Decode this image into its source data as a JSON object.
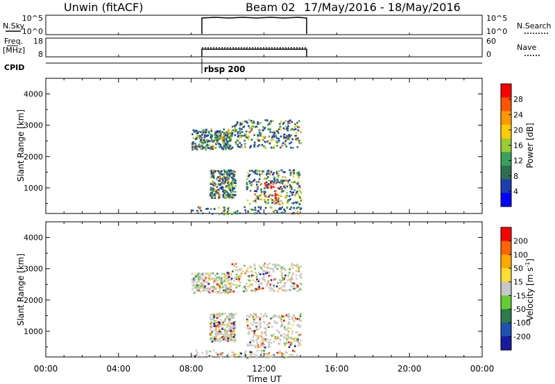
{
  "header": {
    "station": "Unwin (fitACF)",
    "beam": "Beam 02",
    "date_range": "17/May/2016 - 18/May/2016"
  },
  "nsky_panel": {
    "label": "N.Sky",
    "left_ticks": [
      "10^5",
      "10^0"
    ],
    "right_ticks": [
      "10^5",
      "10^0"
    ],
    "right_label": "N.Search"
  },
  "freq_panel": {
    "label_line1": "Freq.",
    "label_line2": "[MHz]",
    "left_ticks": [
      "18",
      "8"
    ],
    "right_ticks": [
      "60",
      "0"
    ],
    "right_label": "Nave"
  },
  "cpid": {
    "label": "CPID",
    "value": "rbsp 200"
  },
  "power_panel": {
    "ylabel": "Slant Range [km]",
    "yticks": [
      "4000",
      "3000",
      "2000",
      "1000"
    ],
    "colorbar_label": "Power [dB]",
    "colorbar_ticks": [
      "28",
      "24",
      "20",
      "16",
      "12",
      "8",
      "4"
    ],
    "colors": [
      "#0000ff",
      "#1f3cb0",
      "#2e6e4e",
      "#3aa05a",
      "#99cc33",
      "#ffcc00",
      "#ff9900",
      "#ff5500",
      "#ff0000"
    ]
  },
  "velocity_panel": {
    "ylabel": "Slant Range [km]",
    "yticks": [
      "4000",
      "3000",
      "2000",
      "1000"
    ],
    "colorbar_label": "Velocity [m s",
    "colorbar_label_sup": "-1",
    "colorbar_label_end": "]",
    "colorbar_ticks": [
      "200",
      "100",
      "50",
      "15",
      "-15",
      "-50",
      "-100",
      "-200"
    ],
    "colors": [
      "#1a1aa0",
      "#2050b0",
      "#2e7a4a",
      "#66cc33",
      "#c8c8c8",
      "#ffdd33",
      "#ffaa00",
      "#ff6600",
      "#ff0000"
    ]
  },
  "xaxis": {
    "label": "Time UT",
    "ticks": [
      "00:00",
      "04:00",
      "08:00",
      "12:00",
      "16:00",
      "20:00",
      "00:00"
    ]
  },
  "chart_data": {
    "type": "heatmap",
    "title": "Unwin (fitACF) Beam 02 17/May/2016 - 18/May/2016",
    "xlabel": "Time UT",
    "ylabel": "Slant Range [km]",
    "xlim_hours": [
      0,
      24
    ],
    "ylim_km": [
      180,
      4500
    ],
    "data_window_hours": [
      8.0,
      14.0
    ],
    "power_colorbar_range_db": [
      0,
      30
    ],
    "velocity_colorbar_range": [
      -250,
      250
    ],
    "echo_regions": [
      {
        "t_start": 8.0,
        "t_end": 10.2,
        "range_min": 2250,
        "range_max": 2900
      },
      {
        "t_start": 10.2,
        "t_end": 14.0,
        "range_min": 2300,
        "range_max": 3200
      },
      {
        "t_start": 9.0,
        "t_end": 10.4,
        "range_min": 700,
        "range_max": 1600
      },
      {
        "t_start": 11.0,
        "t_end": 14.0,
        "range_min": 500,
        "range_max": 1600
      },
      {
        "t_start": 8.0,
        "t_end": 14.0,
        "range_min": 180,
        "range_max": 420
      }
    ]
  }
}
